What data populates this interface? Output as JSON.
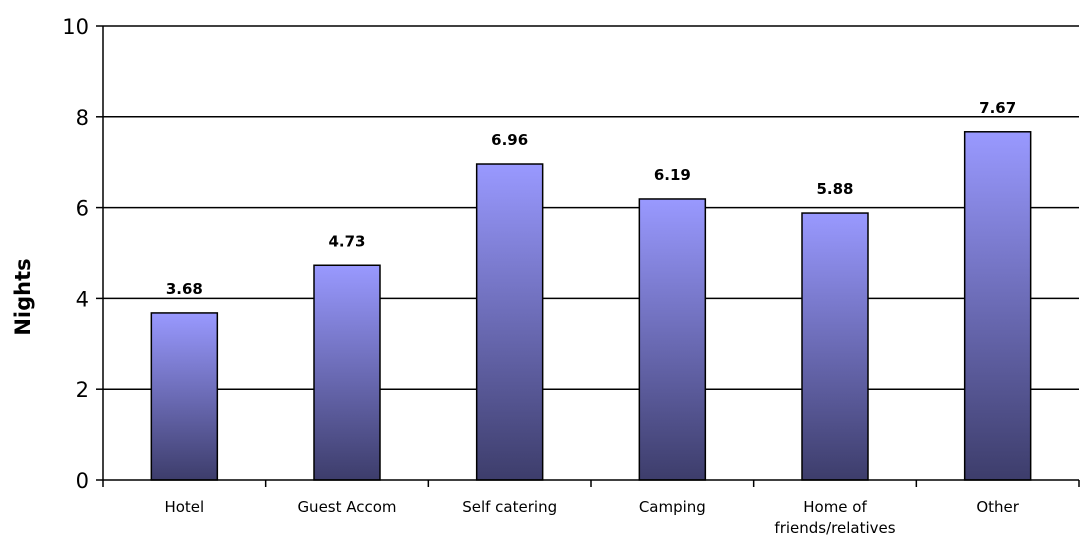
{
  "chart_data": {
    "type": "bar",
    "title": "",
    "xlabel": "",
    "ylabel": "Nights",
    "ylim": [
      0,
      10
    ],
    "yticks": [
      0,
      2,
      4,
      6,
      8,
      10
    ],
    "grid": true,
    "categories": [
      "Hotel",
      "Guest Accom",
      "Self catering",
      "Camping",
      "Home of friends/relatives",
      "Other"
    ],
    "category_lines": [
      [
        "Hotel"
      ],
      [
        "Guest Accom"
      ],
      [
        "Self catering"
      ],
      [
        "Camping"
      ],
      [
        "Home of",
        "friends/relatives"
      ],
      [
        "Other"
      ]
    ],
    "values": [
      3.68,
      4.73,
      6.96,
      6.19,
      5.88,
      7.67
    ],
    "value_labels": [
      "3.68",
      "4.73",
      "6.96",
      "6.19",
      "5.88",
      "7.67"
    ],
    "colors": {
      "bar_top": "#9999ff",
      "bar_bottom": "#3d3d6b",
      "bar_border": "#000000",
      "grid": "#000000"
    }
  }
}
